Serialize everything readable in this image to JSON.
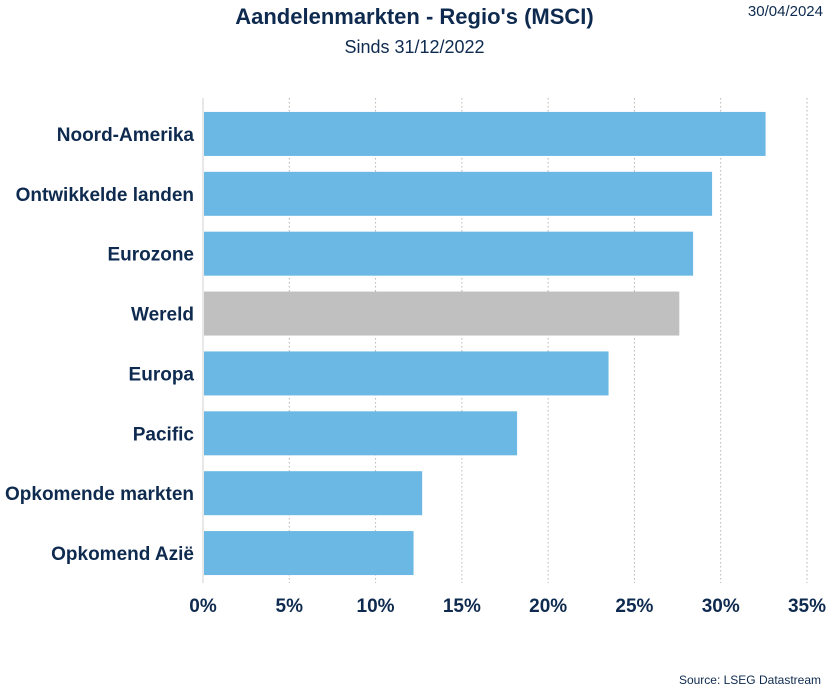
{
  "header": {
    "title": "Aandelenmarkten - Regio's (MSCI)",
    "subtitle": "Sinds 31/12/2022",
    "date": "30/04/2024"
  },
  "footer": {
    "source": "Source: LSEG Datastream"
  },
  "chart_data": {
    "type": "bar",
    "orientation": "horizontal",
    "title": "Aandelenmarkten - Regio's (MSCI)",
    "subtitle": "Sinds 31/12/2022",
    "categories": [
      "Noord-Amerika",
      "Ontwikkelde landen",
      "Eurozone",
      "Wereld",
      "Europa",
      "Pacific",
      "Opkomende markten",
      "Opkomend Azië"
    ],
    "values": [
      32.6,
      29.5,
      28.4,
      27.6,
      23.5,
      18.2,
      12.7,
      12.2
    ],
    "colors": [
      "#6cb8e4",
      "#6cb8e4",
      "#6cb8e4",
      "#c0c0c0",
      "#6cb8e4",
      "#6cb8e4",
      "#6cb8e4",
      "#6cb8e4"
    ],
    "xlim": [
      0,
      35
    ],
    "xticks": [
      "0%",
      "5%",
      "10%",
      "15%",
      "20%",
      "25%",
      "30%",
      "35%"
    ],
    "grid": "vertical dotted",
    "legend": "none"
  }
}
